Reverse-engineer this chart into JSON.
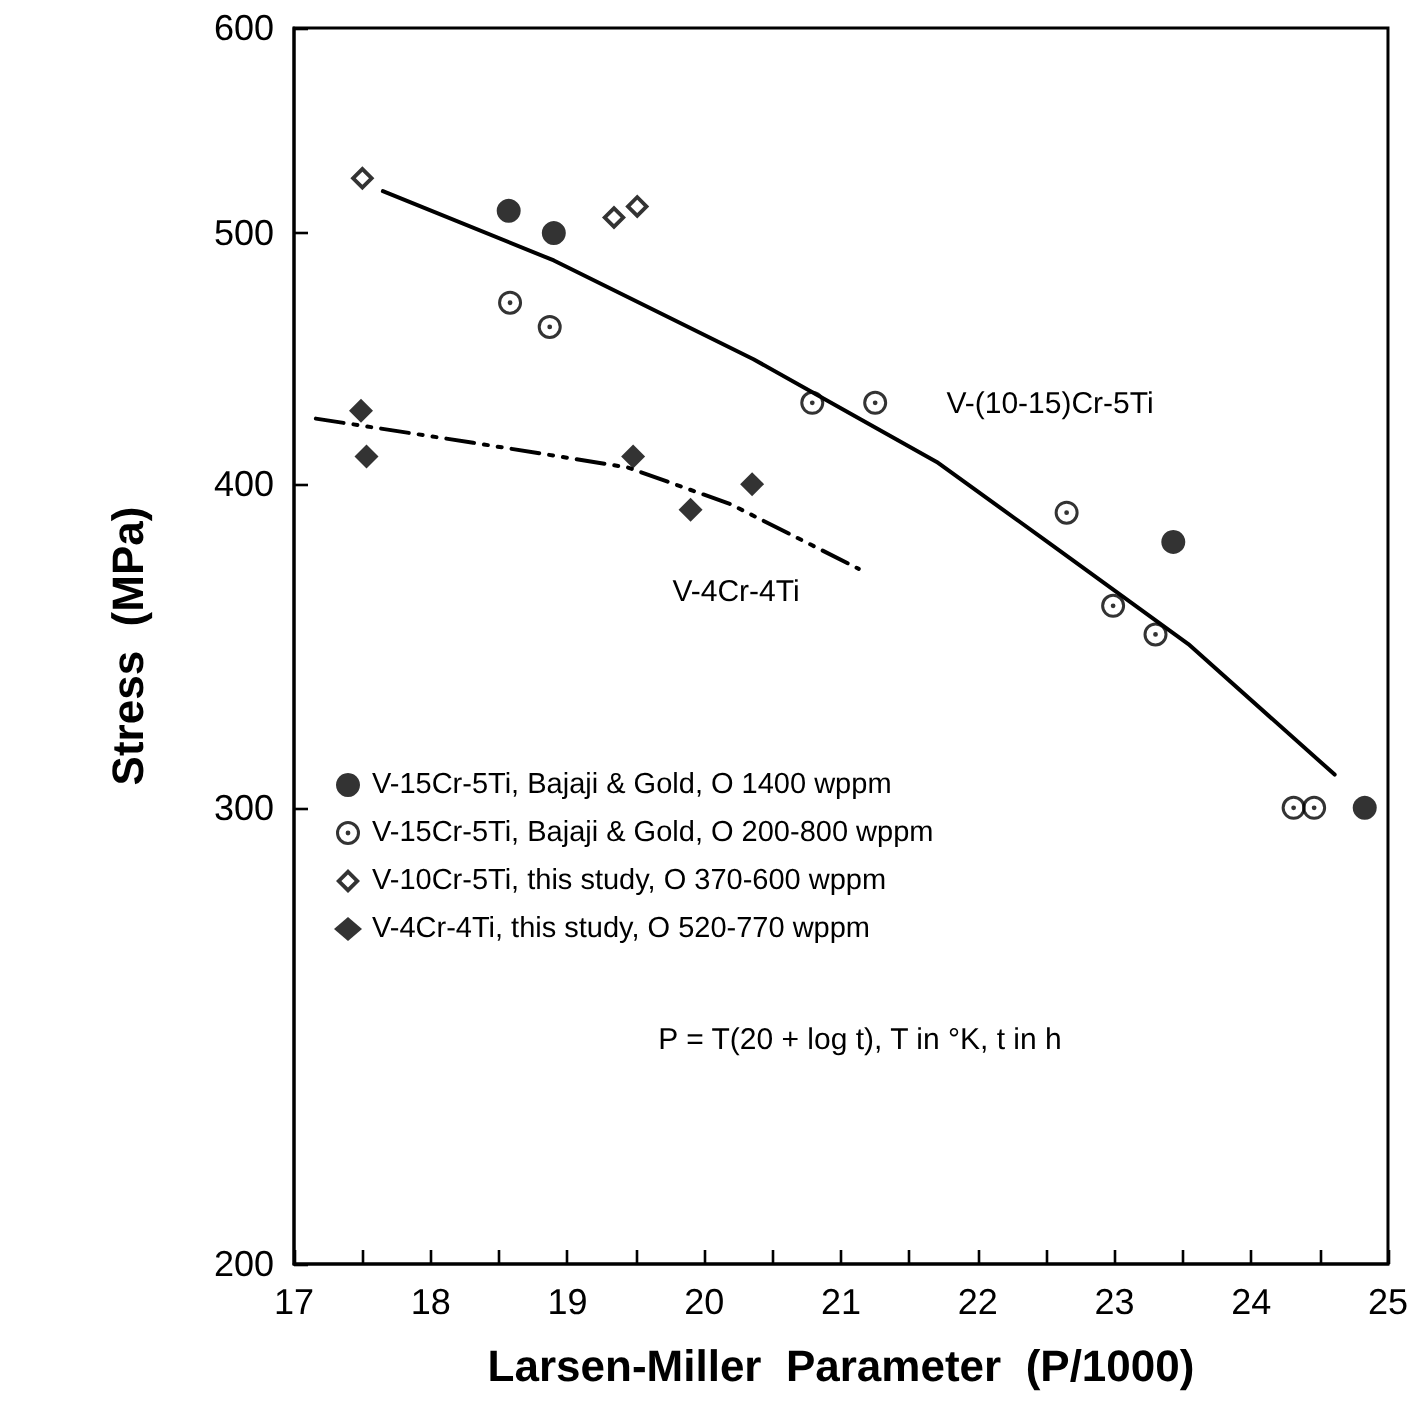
{
  "chart_data": {
    "type": "scatter",
    "xlabel": "Larsen-Miller  Parameter  (P/1000)",
    "ylabel": "Stress  (MPa)",
    "xlim": [
      17,
      25
    ],
    "xticks": [
      17,
      {
        "value": 17.5,
        "label": null
      },
      18,
      {
        "value": 18.5,
        "label": null
      },
      19,
      {
        "value": 19.5,
        "label": null
      },
      20,
      {
        "value": 20.5,
        "label": null
      },
      21,
      {
        "value": 21.5,
        "label": null
      },
      22,
      {
        "value": 22.5,
        "label": null
      },
      23,
      {
        "value": 23.5,
        "label": null
      },
      24,
      {
        "value": 24.5,
        "label": null
      },
      25
    ],
    "ylim": [
      200,
      600
    ],
    "yticks": [
      200,
      300,
      400,
      500,
      600
    ],
    "log": "y",
    "grid": false,
    "legend": "bottom left",
    "series": [
      {
        "name": "V-15Cr-5Ti, Bajaji & Gold, O 1400 wppm",
        "marker": "circle",
        "color": "#000000",
        "x": [
          18.57,
          18.9,
          23.43,
          24.83
        ],
        "values": [
          510,
          500,
          380,
          300
        ]
      },
      {
        "name": "V-15Cr-5Ti, Bajaji & Gold, O 200-800 wppm",
        "marker": "circle",
        "color": "#000000",
        "x": [
          18.58,
          18.87,
          20.79,
          21.25,
          22.65,
          22.99,
          23.3,
          24.31,
          24.46
        ],
        "values": [
          470,
          460,
          430,
          430,
          390,
          359,
          350,
          300,
          300
        ]
      },
      {
        "name": "V-10Cr-5Ti, this study, O 370-600 wppm",
        "marker": "diamond",
        "color": "#000000",
        "x": [
          17.5,
          19.34,
          19.51
        ],
        "values": [
          525,
          507,
          512
        ]
      },
      {
        "name": "V-4Cr-4Ti, this study, O 520-770 wppm",
        "marker": "diamond",
        "color": "#000000",
        "x": [
          17.49,
          17.53,
          19.48,
          19.9,
          20.35
        ],
        "values": [
          427,
          410,
          410,
          391,
          400
        ]
      },
      {
        "type": "line",
        "marker": "none",
        "line_style": "solid",
        "color": "#000000",
        "x": [
          17.65,
          18.9,
          20.36,
          21.1,
          21.7,
          22.51,
          23.54,
          24.61
        ],
        "values": [
          519,
          488,
          447,
          425,
          408,
          380,
          347,
          309
        ]
      },
      {
        "type": "line",
        "marker": "none",
        "line_style": "dashed",
        "color": "#000000",
        "x": [
          17.16,
          18.31,
          19.44,
          20.19,
          21.13
        ],
        "values": [
          424,
          415,
          406,
          393,
          371
        ]
      }
    ],
    "annotations": [
      "V-(10-15)Cr-5Ti",
      "V-4Cr-4Ti",
      "P = T(20 + log t), T in °K, t in h"
    ]
  }
}
